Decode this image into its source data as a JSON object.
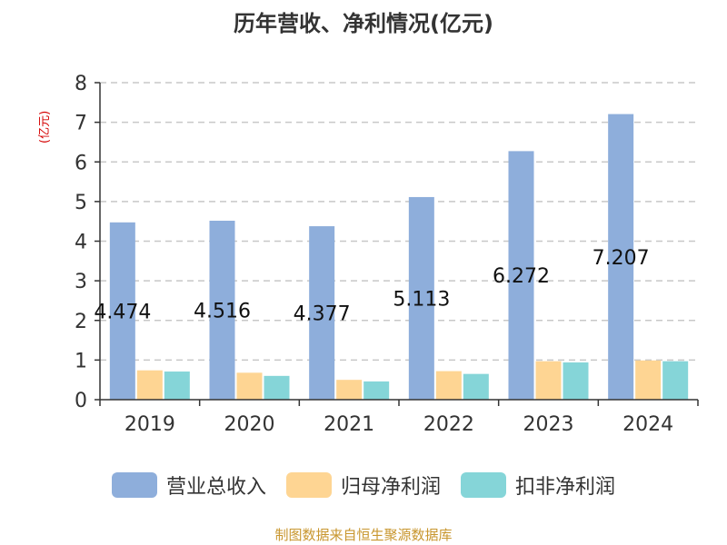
{
  "chart_data": {
    "type": "bar",
    "title": "历年营收、净利情况(亿元)",
    "y_unit": "(亿元)",
    "categories": [
      "2019",
      "2020",
      "2021",
      "2022",
      "2023",
      "2024"
    ],
    "series": [
      {
        "name": "营业总收入",
        "color": "#8eaedb",
        "values": [
          4.474,
          4.516,
          4.377,
          5.113,
          6.272,
          7.207
        ],
        "labels": [
          "4.474",
          "4.516",
          "4.377",
          "5.113",
          "6.272",
          "7.207"
        ]
      },
      {
        "name": "归母净利润",
        "color": "#fed593",
        "values": [
          0.74,
          0.68,
          0.5,
          0.72,
          0.97,
          0.99
        ]
      },
      {
        "name": "扣非净利润",
        "color": "#85d5d8",
        "values": [
          0.71,
          0.6,
          0.46,
          0.65,
          0.94,
          0.97
        ]
      }
    ],
    "ylim": [
      0,
      8
    ],
    "yticks": [
      0,
      1,
      2,
      3,
      4,
      5,
      6,
      7,
      8
    ],
    "grid": true,
    "legend_position": "bottom"
  },
  "source_note": "制图数据来自恒生聚源数据库"
}
